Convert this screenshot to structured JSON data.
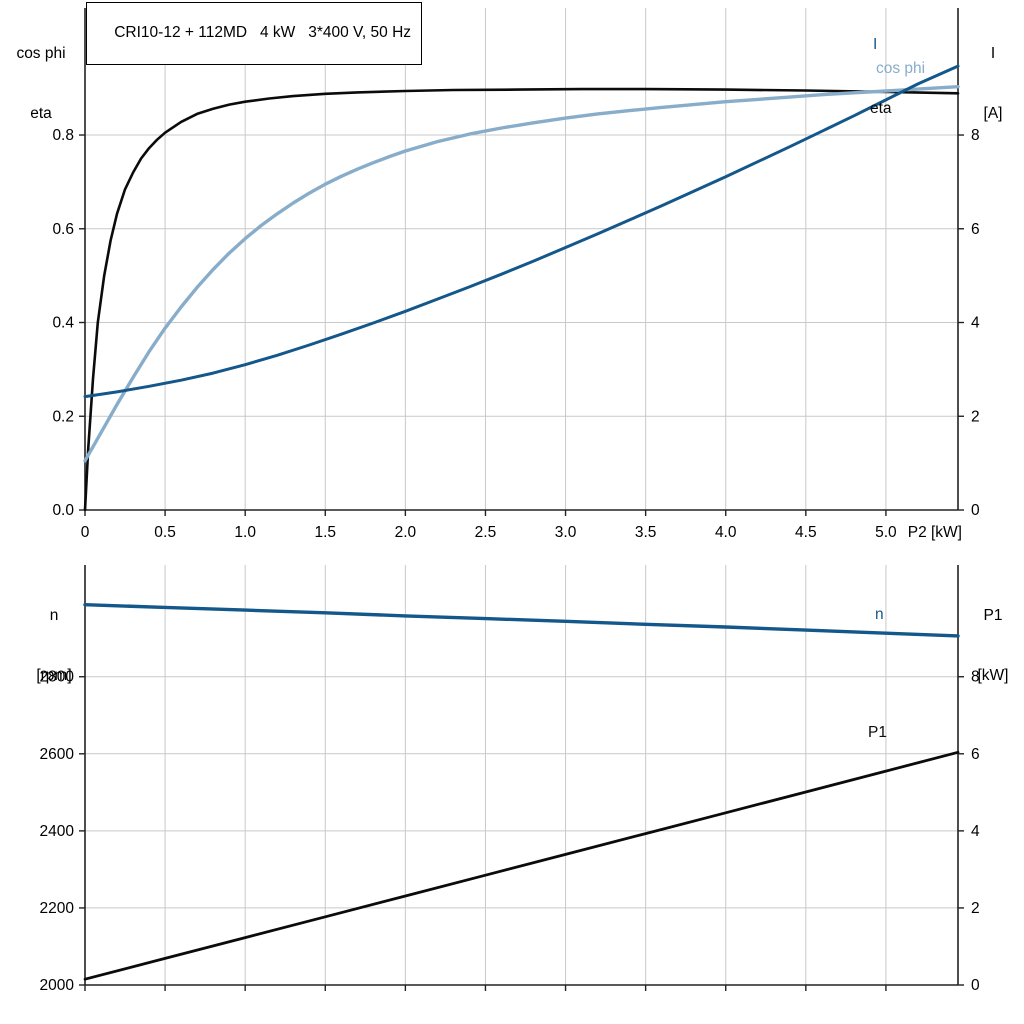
{
  "colors": {
    "curve_black": "#0b0b0b",
    "curve_dark_blue": "#14578a",
    "curve_light_blue": "#88adca",
    "grid": "#c9c9c9",
    "axis": "#222222"
  },
  "chart_data": [
    {
      "type": "line",
      "title": "CRI10-12 + 112MD   4 kW   3*400 V, 50 Hz",
      "grid": true,
      "legend_position": "inline-right",
      "x_axis": {
        "label": "P2 [kW]",
        "min": 0,
        "max": 5.45,
        "ticks": [
          0,
          0.5,
          1.0,
          1.5,
          2.0,
          2.5,
          3.0,
          3.5,
          4.0,
          4.5,
          5.0
        ],
        "tick_labels": [
          "0",
          "0.5",
          "1.0",
          "1.5",
          "2.0",
          "2.5",
          "3.0",
          "3.5",
          "4.0",
          "4.5",
          "5.0"
        ]
      },
      "y_left": {
        "header": [
          "cos phi",
          "eta"
        ],
        "min": 0,
        "max": 1.071,
        "ticks": [
          0,
          0.2,
          0.4,
          0.6,
          0.8
        ],
        "tick_labels": [
          "0.0",
          "0.2",
          "0.4",
          "0.6",
          "0.8"
        ]
      },
      "y_right": {
        "header": [
          "I",
          "[A]"
        ],
        "min": 0,
        "max": 10.71,
        "ticks": [
          0,
          2,
          4,
          6,
          8
        ],
        "tick_labels": [
          "0",
          "2",
          "4",
          "6",
          "8"
        ]
      },
      "series": [
        {
          "name": "eta",
          "label": "eta",
          "axis": "left",
          "color": "#0b0b0b",
          "width": 2.6,
          "points": [
            [
              0,
              0
            ],
            [
              0.02,
              0.13
            ],
            [
              0.05,
              0.28
            ],
            [
              0.08,
              0.4
            ],
            [
              0.12,
              0.5
            ],
            [
              0.16,
              0.575
            ],
            [
              0.2,
              0.632
            ],
            [
              0.25,
              0.684
            ],
            [
              0.3,
              0.72
            ],
            [
              0.35,
              0.75
            ],
            [
              0.4,
              0.772
            ],
            [
              0.45,
              0.79
            ],
            [
              0.5,
              0.805
            ],
            [
              0.6,
              0.828
            ],
            [
              0.7,
              0.845
            ],
            [
              0.8,
              0.856
            ],
            [
              0.9,
              0.865
            ],
            [
              1.0,
              0.871
            ],
            [
              1.15,
              0.878
            ],
            [
              1.3,
              0.883
            ],
            [
              1.5,
              0.888
            ],
            [
              1.7,
              0.891
            ],
            [
              2.0,
              0.894
            ],
            [
              2.3,
              0.896
            ],
            [
              2.7,
              0.897
            ],
            [
              3.1,
              0.898
            ],
            [
              3.5,
              0.898
            ],
            [
              4.0,
              0.897
            ],
            [
              4.5,
              0.895
            ],
            [
              5.0,
              0.892
            ],
            [
              5.45,
              0.889
            ]
          ]
        },
        {
          "name": "cos phi",
          "label": "cos phi",
          "axis": "left",
          "color": "#88adca",
          "width": 3.4,
          "points": [
            [
              0,
              0.105
            ],
            [
              0.1,
              0.165
            ],
            [
              0.2,
              0.225
            ],
            [
              0.3,
              0.283
            ],
            [
              0.4,
              0.338
            ],
            [
              0.5,
              0.388
            ],
            [
              0.6,
              0.433
            ],
            [
              0.7,
              0.475
            ],
            [
              0.8,
              0.513
            ],
            [
              0.9,
              0.548
            ],
            [
              1.0,
              0.579
            ],
            [
              1.1,
              0.607
            ],
            [
              1.2,
              0.632
            ],
            [
              1.3,
              0.655
            ],
            [
              1.4,
              0.676
            ],
            [
              1.5,
              0.695
            ],
            [
              1.6,
              0.712
            ],
            [
              1.7,
              0.727
            ],
            [
              1.8,
              0.741
            ],
            [
              1.9,
              0.754
            ],
            [
              2.0,
              0.766
            ],
            [
              2.2,
              0.786
            ],
            [
              2.4,
              0.802
            ],
            [
              2.6,
              0.815
            ],
            [
              2.8,
              0.826
            ],
            [
              3.0,
              0.836
            ],
            [
              3.2,
              0.845
            ],
            [
              3.4,
              0.852
            ],
            [
              3.6,
              0.859
            ],
            [
              3.8,
              0.865
            ],
            [
              4.0,
              0.871
            ],
            [
              4.2,
              0.876
            ],
            [
              4.4,
              0.881
            ],
            [
              4.6,
              0.886
            ],
            [
              4.8,
              0.89
            ],
            [
              5.0,
              0.894
            ],
            [
              5.2,
              0.898
            ],
            [
              5.45,
              0.903
            ]
          ]
        },
        {
          "name": "I",
          "label": "I",
          "axis": "right",
          "color": "#14578a",
          "width": 3.0,
          "points": [
            [
              0,
              2.42
            ],
            [
              0.2,
              2.52
            ],
            [
              0.4,
              2.64
            ],
            [
              0.6,
              2.77
            ],
            [
              0.8,
              2.92
            ],
            [
              1.0,
              3.1
            ],
            [
              1.2,
              3.3
            ],
            [
              1.4,
              3.52
            ],
            [
              1.6,
              3.75
            ],
            [
              1.8,
              3.99
            ],
            [
              2.0,
              4.24
            ],
            [
              2.2,
              4.5
            ],
            [
              2.4,
              4.76
            ],
            [
              2.6,
              5.03
            ],
            [
              2.8,
              5.31
            ],
            [
              3.0,
              5.6
            ],
            [
              3.2,
              5.89
            ],
            [
              3.4,
              6.19
            ],
            [
              3.6,
              6.49
            ],
            [
              3.8,
              6.8
            ],
            [
              4.0,
              7.11
            ],
            [
              4.2,
              7.43
            ],
            [
              4.4,
              7.75
            ],
            [
              4.6,
              8.08
            ],
            [
              4.8,
              8.41
            ],
            [
              5.0,
              8.75
            ],
            [
              5.2,
              9.09
            ],
            [
              5.45,
              9.47
            ]
          ]
        }
      ]
    },
    {
      "type": "line",
      "title": "",
      "grid": true,
      "legend_position": "inline-right",
      "x_axis": {
        "label": "",
        "min": 0,
        "max": 5.45,
        "ticks": [
          0,
          0.5,
          1.0,
          1.5,
          2.0,
          2.5,
          3.0,
          3.5,
          4.0,
          4.5,
          5.0
        ],
        "tick_labels": []
      },
      "y_left": {
        "header": [
          "n",
          "[rpm]"
        ],
        "min": 2000,
        "max": 3090,
        "ticks": [
          2000,
          2200,
          2400,
          2600,
          2800
        ],
        "tick_labels": [
          "2000",
          "2200",
          "2400",
          "2600",
          "2800"
        ]
      },
      "y_right": {
        "header": [
          "P1",
          "[kW]"
        ],
        "min": 0,
        "max": 10.9,
        "ticks": [
          0,
          2,
          4,
          6,
          8
        ],
        "tick_labels": [
          "0",
          "2",
          "4",
          "6",
          "8"
        ]
      },
      "series": [
        {
          "name": "n",
          "label": "n",
          "axis": "left",
          "color": "#14578a",
          "width": 3.4,
          "points": [
            [
              0,
              2987
            ],
            [
              0.5,
              2980
            ],
            [
              1.0,
              2973
            ],
            [
              1.5,
              2966
            ],
            [
              2.0,
              2958
            ],
            [
              2.5,
              2951
            ],
            [
              3.0,
              2944
            ],
            [
              3.5,
              2936
            ],
            [
              4.0,
              2929
            ],
            [
              4.5,
              2921
            ],
            [
              5.0,
              2913
            ],
            [
              5.45,
              2906
            ]
          ]
        },
        {
          "name": "P1",
          "label": "P1",
          "axis": "right",
          "color": "#0b0b0b",
          "width": 2.8,
          "points": [
            [
              0,
              0.15
            ],
            [
              0.5,
              0.69
            ],
            [
              1.0,
              1.23
            ],
            [
              1.5,
              1.77
            ],
            [
              2.0,
              2.31
            ],
            [
              2.5,
              2.85
            ],
            [
              3.0,
              3.39
            ],
            [
              3.5,
              3.93
            ],
            [
              4.0,
              4.47
            ],
            [
              4.5,
              5.01
            ],
            [
              5.0,
              5.55
            ],
            [
              5.45,
              6.04
            ]
          ]
        }
      ]
    }
  ]
}
